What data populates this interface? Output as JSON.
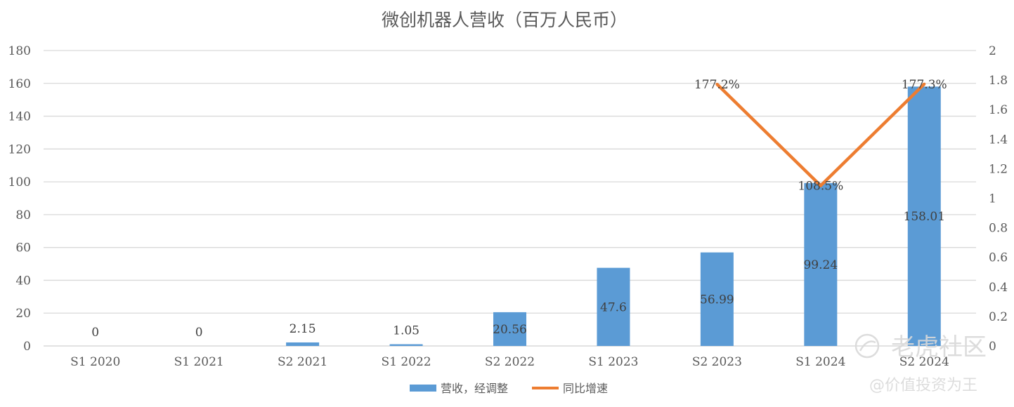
{
  "chart_data": {
    "type": "bar",
    "title": "微创机器人营收（百万人民币）",
    "categories": [
      "S1 2020",
      "S1 2021",
      "S2 2021",
      "S1 2022",
      "S2 2022",
      "S1 2023",
      "S2 2023",
      "S1 2024",
      "S2 2024"
    ],
    "series": [
      {
        "name": "营收，经调整",
        "type": "bar",
        "axis": "left",
        "color": "#5B9BD5",
        "values": [
          0,
          0,
          2.15,
          1.05,
          20.56,
          47.6,
          56.99,
          99.24,
          158.01
        ],
        "labels": [
          "0",
          "0",
          "2.15",
          "1.05",
          "20.56",
          "47.6",
          "56.99",
          "99.24",
          "158.01"
        ]
      },
      {
        "name": "同比增速",
        "type": "line",
        "axis": "right",
        "color": "#ED7D31",
        "values": [
          null,
          null,
          null,
          null,
          null,
          null,
          1.772,
          1.085,
          1.773
        ],
        "labels": [
          "",
          "",
          "",
          "",
          "",
          "",
          "177.2%",
          "108.5%",
          "177.3%"
        ]
      }
    ],
    "y_left": {
      "min": 0,
      "max": 180,
      "ticks": [
        "0",
        "20",
        "40",
        "60",
        "80",
        "100",
        "120",
        "140",
        "160",
        "180"
      ]
    },
    "y_right": {
      "min": 0,
      "max": 2,
      "ticks": [
        "0",
        "0.2",
        "0.4",
        "0.6",
        "0.8",
        "1",
        "1.2",
        "1.4",
        "1.6",
        "1.8",
        "2"
      ]
    },
    "grid": true,
    "legend": "bottom-center"
  },
  "watermark": {
    "brand": "老虎社区",
    "handle": "@价值投资为王",
    "icon": "tiger-logo-icon"
  }
}
